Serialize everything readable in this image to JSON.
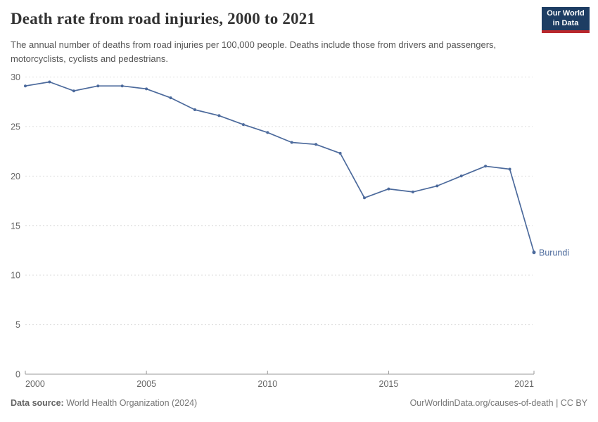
{
  "header": {
    "title": "Death rate from road injuries, 2000 to 2021",
    "subtitle": "The annual number of deaths from road injuries per 100,000 people. Deaths include those from drivers and passengers, motorcyclists, cyclists and pedestrians.",
    "logo": {
      "line1": "Our World",
      "line2": "in Data"
    }
  },
  "footer": {
    "source_label": "Data source:",
    "source_value": "World Health Organization (2024)",
    "credit": "OurWorldinData.org/causes-of-death | CC BY"
  },
  "colors": {
    "line": "#4C6A9C",
    "entity_label": "#4C6A9C",
    "gridline": "#dddddd",
    "axis": "#999999",
    "tick_text": "#666666",
    "logo_bg": "#1d3d63",
    "logo_stripe": "#b9282d"
  },
  "chart_data": {
    "type": "line",
    "title": "Death rate from road injuries, 2000 to 2021",
    "x": [
      2000,
      2001,
      2002,
      2003,
      2004,
      2005,
      2006,
      2007,
      2008,
      2009,
      2010,
      2011,
      2012,
      2013,
      2014,
      2015,
      2016,
      2017,
      2018,
      2019,
      2020,
      2021
    ],
    "series": [
      {
        "name": "Burundi",
        "values": [
          29.1,
          29.5,
          28.6,
          29.1,
          29.1,
          28.8,
          27.9,
          26.7,
          26.1,
          25.2,
          24.4,
          23.4,
          23.2,
          22.3,
          17.8,
          18.7,
          18.4,
          19.0,
          20.0,
          21.0,
          20.7,
          12.3
        ]
      }
    ],
    "xlabel": "",
    "ylabel": "",
    "ylim": [
      0,
      30
    ],
    "xlim": [
      2000,
      2021
    ],
    "yticks": [
      0,
      5,
      10,
      15,
      20,
      25,
      30
    ],
    "xticks": [
      2000,
      2005,
      2010,
      2015,
      2021
    ],
    "grid": "horizontal-dashed",
    "legend": "end-of-line-label"
  }
}
